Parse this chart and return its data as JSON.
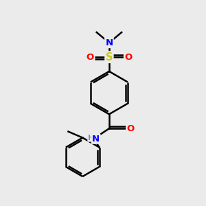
{
  "bg_color": "#ebebeb",
  "atom_colors": {
    "C": "#000000",
    "H": "#7a9a9a",
    "N": "#0000ff",
    "O": "#ff0000",
    "S": "#cccc00"
  },
  "line_color": "#000000",
  "line_width": 1.8,
  "figsize": [
    3.0,
    3.0
  ],
  "dpi": 100,
  "xlim": [
    0,
    10
  ],
  "ylim": [
    0,
    10
  ]
}
